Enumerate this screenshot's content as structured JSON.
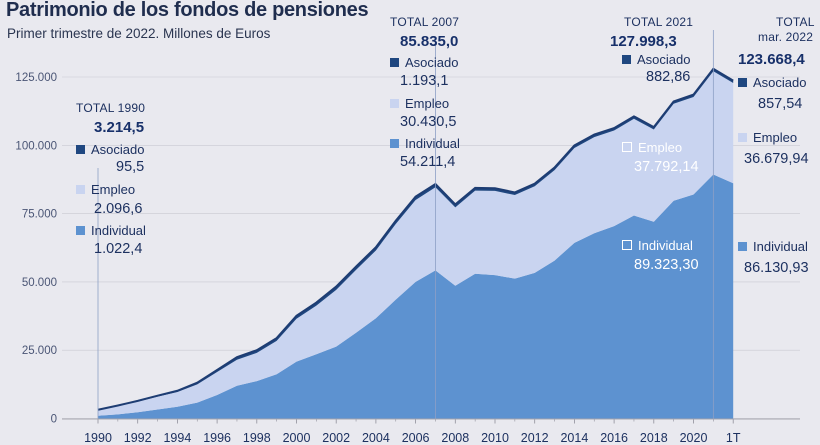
{
  "title": "Patrimonio de los fondos de pensiones",
  "subtitle": "Primer trimestre de 2022. Millones de Euros",
  "chart_data": {
    "type": "area",
    "stacked": true,
    "x_tick_labels": [
      "1990",
      "1992",
      "1994",
      "1996",
      "1998",
      "2000",
      "2002",
      "2004",
      "2006",
      "2008",
      "2010",
      "2012",
      "2014",
      "2016",
      "2018",
      "2020",
      "1T"
    ],
    "y_tick_labels": [
      "0",
      "25.000",
      "50.000",
      "75.000",
      "100.000",
      "125.000"
    ],
    "ylim": [
      0,
      130000
    ],
    "x": [
      1990,
      1991,
      1992,
      1993,
      1994,
      1995,
      1996,
      1997,
      1998,
      1999,
      2000,
      2001,
      2002,
      2003,
      2004,
      2005,
      2006,
      2007,
      2008,
      2009,
      2010,
      2011,
      2012,
      2013,
      2014,
      2015,
      2016,
      2017,
      2018,
      2019,
      2020,
      2021,
      2022
    ],
    "series": [
      {
        "name": "Individual",
        "color": "#5d92d0",
        "values": [
          1022,
          1500,
          2300,
          3300,
          4300,
          5800,
          8600,
          12000,
          13700,
          16200,
          20800,
          23500,
          26300,
          31400,
          36700,
          43500,
          50000,
          54211,
          48600,
          53000,
          52500,
          51200,
          53300,
          57800,
          64300,
          67800,
          70400,
          74300,
          72000,
          79700,
          82000,
          89323,
          86131
        ]
      },
      {
        "name": "Empleo",
        "color": "#c9d4f0",
        "values": [
          2097,
          3100,
          3900,
          4700,
          5400,
          6700,
          8400,
          9500,
          10300,
          12200,
          15700,
          17800,
          20800,
          23000,
          24800,
          27700,
          30000,
          30431,
          28700,
          30400,
          30800,
          30600,
          31700,
          33100,
          34700,
          35200,
          35000,
          35400,
          33800,
          35500,
          35700,
          37792,
          36680
        ]
      },
      {
        "name": "Asociado",
        "color": "#1f4780",
        "values": [
          96,
          150,
          250,
          350,
          450,
          600,
          750,
          950,
          1000,
          1050,
          1100,
          1150,
          1200,
          1200,
          1200,
          1200,
          1200,
          1193,
          1050,
          1000,
          1000,
          950,
          950,
          950,
          950,
          950,
          900,
          900,
          850,
          850,
          850,
          883,
          858
        ]
      }
    ]
  },
  "annotations": {
    "a1990": {
      "total_label": "TOTAL 1990",
      "total_value": "3.214,5",
      "asociado_label": "Asociado",
      "asociado_value": "95,5",
      "empleo_label": "Empleo",
      "empleo_value": "2.096,6",
      "individual_label": "Individual",
      "individual_value": "1.022,4"
    },
    "a2007": {
      "total_label": "TOTAL 2007",
      "total_value": "85.835,0",
      "asociado_label": "Asociado",
      "asociado_value": "1.193,1",
      "empleo_label": "Empleo",
      "empleo_value": "30.430,5",
      "individual_label": "Individual",
      "individual_value": "54.211,4"
    },
    "a2021": {
      "total_label": "TOTAL 2021",
      "total_value": "127.998,3",
      "asociado_label": "Asociado",
      "asociado_value": "882,86",
      "empleo_label": "Empleo",
      "empleo_value": "37.792,14",
      "individual_label": "Individual",
      "individual_value": "89.323,30"
    },
    "a2022": {
      "total_label": "TOTAL",
      "total_sub": "mar. 2022",
      "total_value": "123.668,4",
      "asociado_label": "Asociado",
      "asociado_value": "857,54",
      "empleo_label": "Empleo",
      "empleo_value": "36.679,94",
      "individual_label": "Individual",
      "individual_value": "86.130,93"
    }
  }
}
